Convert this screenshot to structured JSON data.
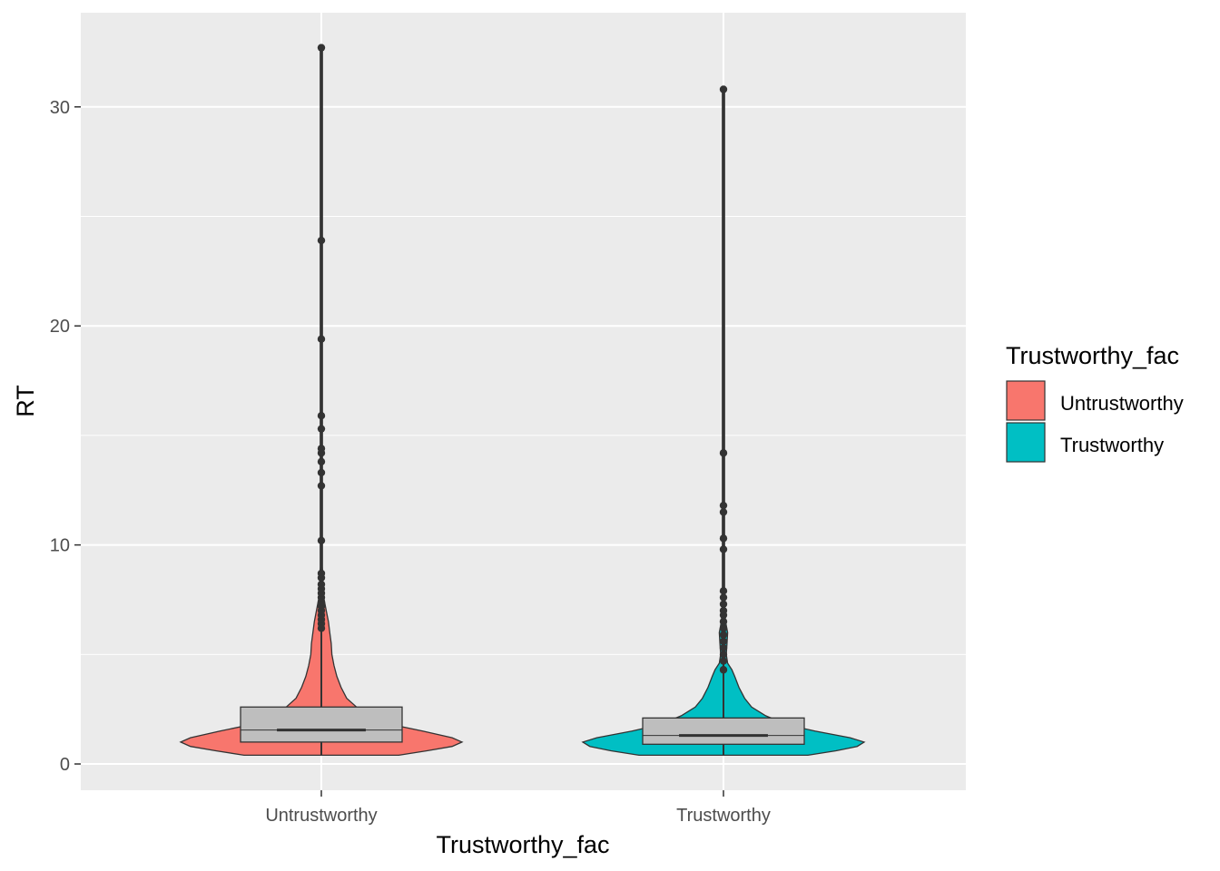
{
  "chart_data": {
    "type": "violin",
    "xlabel": "Trustworthy_fac",
    "ylabel": "RT",
    "categories": [
      "Untrustworthy",
      "Trustworthy"
    ],
    "ylim": [
      -1.2,
      34.3
    ],
    "yticks": [
      0,
      10,
      20,
      30
    ],
    "grid": true,
    "legend": {
      "title": "Trustworthy_fac",
      "position": "right",
      "entries": [
        {
          "label": "Untrustworthy",
          "color": "#F8766D"
        },
        {
          "label": "Trustworthy",
          "color": "#00BFC4"
        }
      ]
    },
    "series": [
      {
        "category": "Untrustworthy",
        "color": "#F8766D",
        "min": 0.4,
        "max": 32.7,
        "density": [
          [
            0.4,
            0.55
          ],
          [
            0.6,
            0.75
          ],
          [
            0.8,
            0.93
          ],
          [
            1.0,
            1.0
          ],
          [
            1.2,
            0.93
          ],
          [
            1.5,
            0.72
          ],
          [
            1.8,
            0.5
          ],
          [
            2.2,
            0.33
          ],
          [
            2.6,
            0.25
          ],
          [
            3.0,
            0.18
          ],
          [
            3.5,
            0.14
          ],
          [
            4.0,
            0.11
          ],
          [
            4.5,
            0.09
          ],
          [
            5.0,
            0.075
          ],
          [
            5.5,
            0.07
          ],
          [
            6.0,
            0.06
          ],
          [
            6.5,
            0.05
          ],
          [
            7.0,
            0.035
          ],
          [
            7.5,
            0.02
          ],
          [
            8.0,
            0.012
          ],
          [
            9.0,
            0.008
          ],
          [
            10.0,
            0.006
          ],
          [
            12.0,
            0.005
          ],
          [
            32.7,
            0.004
          ]
        ],
        "box": {
          "q1": 1.0,
          "median": 1.55,
          "q3": 2.6,
          "notch_low": 1.48,
          "notch_high": 1.62
        },
        "outliers": [
          6.2,
          6.4,
          6.6,
          6.8,
          7.0,
          7.2,
          7.4,
          7.6,
          7.8,
          8.0,
          8.2,
          8.5,
          8.7,
          10.2,
          12.7,
          13.3,
          13.8,
          14.2,
          14.4,
          15.3,
          15.9,
          19.4,
          23.9,
          32.7
        ]
      },
      {
        "category": "Trustworthy",
        "color": "#00BFC4",
        "min": 0.4,
        "max": 30.8,
        "density": [
          [
            0.4,
            0.6
          ],
          [
            0.6,
            0.8
          ],
          [
            0.8,
            0.95
          ],
          [
            1.0,
            1.0
          ],
          [
            1.2,
            0.9
          ],
          [
            1.5,
            0.65
          ],
          [
            1.8,
            0.45
          ],
          [
            2.2,
            0.3
          ],
          [
            2.6,
            0.2
          ],
          [
            3.0,
            0.15
          ],
          [
            3.5,
            0.11
          ],
          [
            4.0,
            0.08
          ],
          [
            4.3,
            0.06
          ],
          [
            4.6,
            0.03
          ],
          [
            5.0,
            0.02
          ],
          [
            5.5,
            0.025
          ],
          [
            6.0,
            0.03
          ],
          [
            6.5,
            0.015
          ],
          [
            7.0,
            0.01
          ],
          [
            8.0,
            0.006
          ],
          [
            10.0,
            0.004
          ],
          [
            12.0,
            0.003
          ],
          [
            30.8,
            0.002
          ]
        ],
        "box": {
          "q1": 0.9,
          "median": 1.3,
          "q3": 2.1,
          "notch_low": 1.25,
          "notch_high": 1.35
        },
        "outliers": [
          4.3,
          4.7,
          5.0,
          5.3,
          5.6,
          5.9,
          6.2,
          6.5,
          6.8,
          7.0,
          7.3,
          7.6,
          7.9,
          9.8,
          10.3,
          11.5,
          11.8,
          14.2,
          30.8
        ]
      }
    ]
  }
}
